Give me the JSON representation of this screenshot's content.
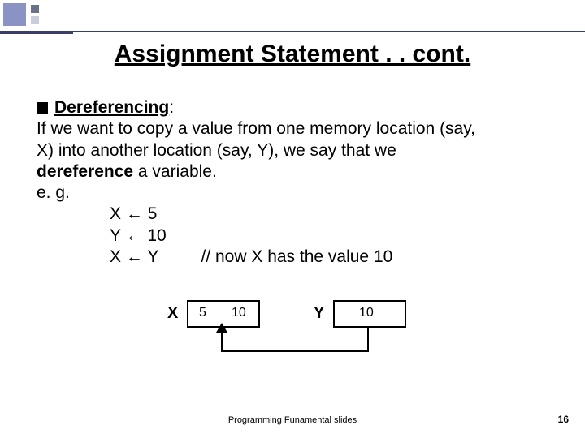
{
  "title": "Assignment Statement . . cont.",
  "bullet_heading": "Dereferencing",
  "body_line1": "If we want to copy a value from one memory location (say,",
  "body_line2": "X) into another location (say, Y), we say that we",
  "body_line3a": "dereference",
  "body_line3b": " a variable.",
  "eg": "e. g.",
  "assign1_var": "X",
  "assign1_val": "5",
  "assign2_var": "Y",
  "assign2_val": "10",
  "assign3_var": "X",
  "assign3_val": "Y",
  "comment": "// now X has the value 10",
  "arrow_glyph": "←",
  "diagram": {
    "labelX": "X",
    "labelY": "Y",
    "x_val_old": "5",
    "x_val_new": "10",
    "y_val": "10",
    "box_border": "#000000",
    "bg": "#ffffff"
  },
  "footer": "Programming Funamental slides",
  "page": "16",
  "colors": {
    "deco_big": "#8a93c4",
    "deco_s1": "#6a6f8a",
    "deco_s2": "#c9ccdc",
    "deco_line": "#3a3f66",
    "text": "#000000"
  }
}
